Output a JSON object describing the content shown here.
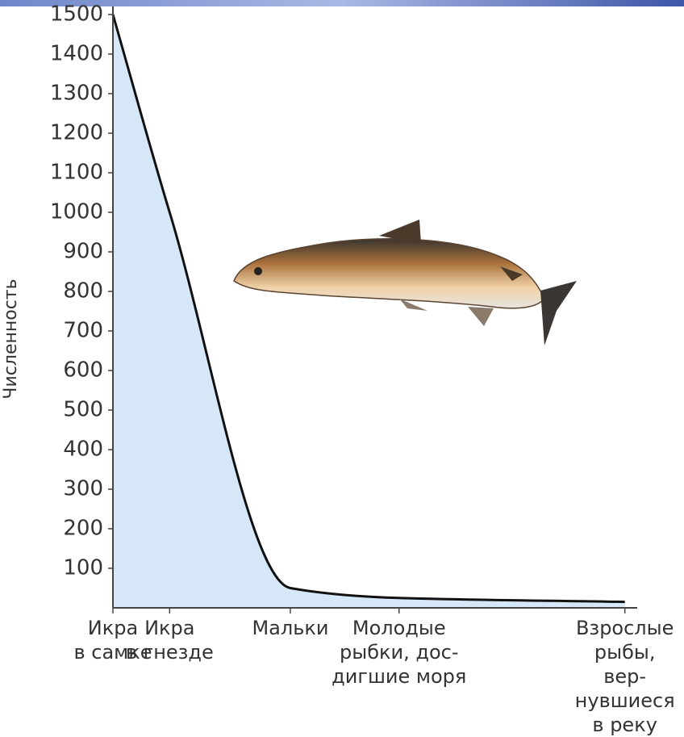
{
  "chart_data": {
    "type": "area",
    "y_label": "Численность",
    "categories": [
      "Икра\nв самке",
      "Икра\nв гнезде",
      "Мальки",
      "Молодые\nрыбки, дос-\nдигшие моря",
      "Взрослые\nрыбы, вер-\nнувшиеся\nв реку"
    ],
    "values": [
      1500,
      1000,
      50,
      25,
      15
    ],
    "ylim": [
      0,
      1500
    ],
    "yticks": [
      100,
      200,
      300,
      400,
      500,
      600,
      700,
      800,
      900,
      1000,
      1100,
      1200,
      1300,
      1400,
      1500
    ],
    "color": "#111111",
    "fill": "#d6e8f8"
  }
}
